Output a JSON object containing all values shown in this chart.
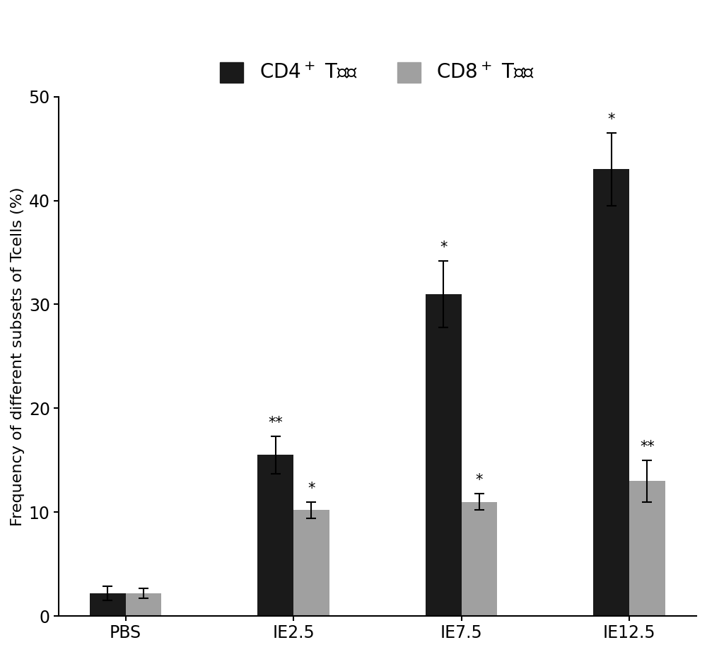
{
  "categories": [
    "PBS",
    "IE2.5",
    "IE7.5",
    "IE12.5"
  ],
  "cd4_values": [
    2.2,
    15.5,
    31.0,
    43.0
  ],
  "cd8_values": [
    2.2,
    10.2,
    11.0,
    13.0
  ],
  "cd4_errors": [
    0.7,
    1.8,
    3.2,
    3.5
  ],
  "cd8_errors": [
    0.5,
    0.8,
    0.8,
    2.0
  ],
  "cd4_color": "#1a1a1a",
  "cd8_color": "#a0a0a0",
  "cd4_label": "CD4$^+$ T细胞",
  "cd8_label": "CD8$^+$ T细胞",
  "ylabel": "Frequency of different subsets of Tcells (%)",
  "ylim": [
    0,
    50
  ],
  "yticks": [
    0,
    10,
    20,
    30,
    40,
    50
  ],
  "bar_width": 0.32,
  "cd4_significance": [
    "",
    "**",
    "*",
    "*"
  ],
  "cd8_significance": [
    "",
    "*",
    "*",
    "**"
  ],
  "background_color": "#ffffff",
  "legend_fontsize": 20,
  "tick_fontsize": 17,
  "ylabel_fontsize": 16,
  "sig_fontsize": 15
}
